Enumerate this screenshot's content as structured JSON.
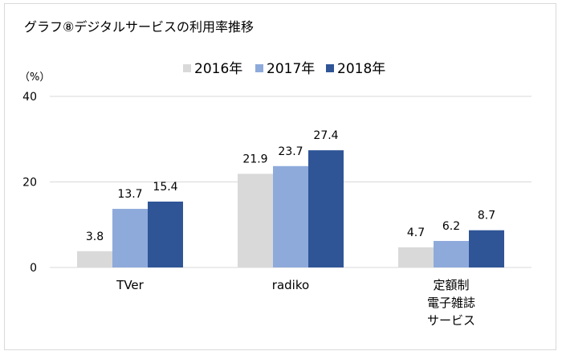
{
  "title": "グラフ⑧デジタルサービスの利用率推移",
  "chart_data": {
    "type": "bar",
    "title": "グラフ⑧デジタルサービスの利用率推移",
    "ylabel": "（%）",
    "xlabel": "",
    "ylim": [
      0,
      40
    ],
    "yticks": [
      0,
      20,
      40
    ],
    "grid": true,
    "legend_position": "top",
    "categories": [
      "TVer",
      "radiko",
      "定額制\n電子雑誌\nサービス"
    ],
    "series": [
      {
        "name": "2016年",
        "color": "#d9d9d9",
        "values": [
          3.8,
          21.9,
          4.7
        ]
      },
      {
        "name": "2017年",
        "color": "#8eaadb",
        "values": [
          13.7,
          23.7,
          6.2
        ]
      },
      {
        "name": "2018年",
        "color": "#2f5597",
        "values": [
          15.4,
          27.4,
          8.7
        ]
      }
    ]
  }
}
